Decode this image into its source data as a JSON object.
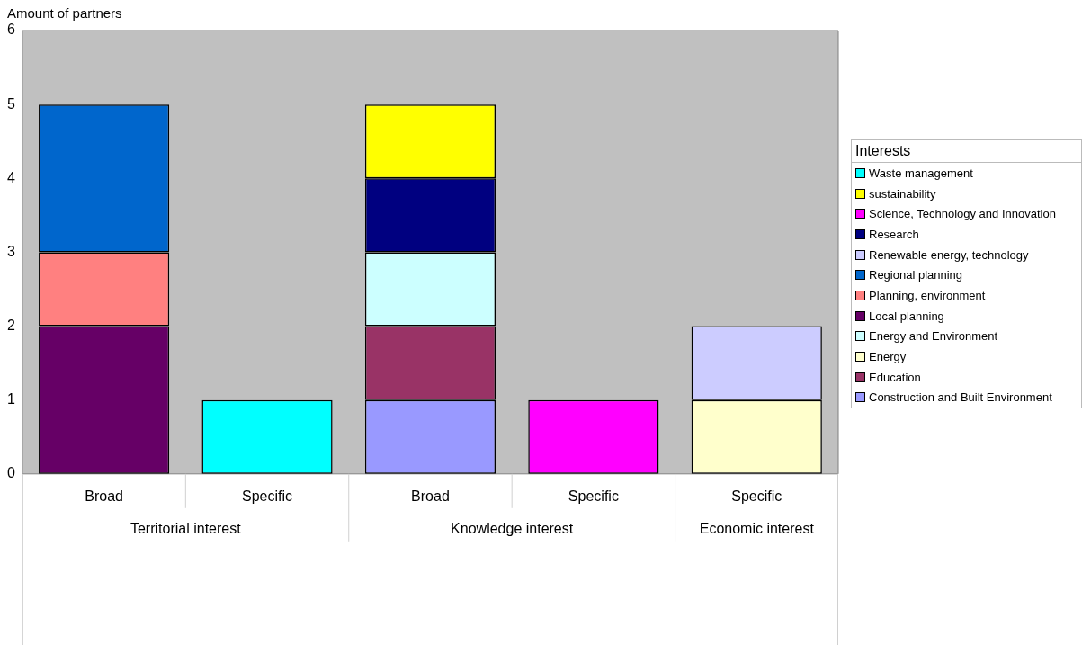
{
  "chart_data": {
    "type": "bar",
    "stacked": true,
    "ylabel": "Amount of partners",
    "legend_title": "Interests",
    "legend": "right",
    "categories": [
      "Broad",
      "Specific",
      "Broad",
      "Specific",
      "Specific"
    ],
    "annotations": [
      "Territorial interest",
      "Knowledge interest",
      "Economic interest"
    ],
    "ylim": [
      0,
      6
    ],
    "yticks": [
      0,
      1,
      2,
      3,
      4,
      5,
      6
    ],
    "grid": false,
    "series": [
      {
        "name": "Construction and Built Environment",
        "color": "#9999ff",
        "values": [
          null,
          null,
          1,
          null,
          null
        ]
      },
      {
        "name": "Education",
        "color": "#993366",
        "values": [
          null,
          null,
          1,
          null,
          null
        ]
      },
      {
        "name": "Energy",
        "color": "#ffffcc",
        "values": [
          null,
          null,
          null,
          null,
          1
        ]
      },
      {
        "name": "Energy and Environment",
        "color": "#ccffff",
        "values": [
          null,
          null,
          1,
          null,
          null
        ]
      },
      {
        "name": "Local planning",
        "color": "#660066",
        "values": [
          2,
          null,
          null,
          null,
          null
        ]
      },
      {
        "name": "Planning, environment",
        "color": "#ff8080",
        "values": [
          1,
          null,
          null,
          null,
          null
        ]
      },
      {
        "name": "Regional planning",
        "color": "#0066cc",
        "values": [
          2,
          null,
          null,
          null,
          null
        ]
      },
      {
        "name": "Renewable energy, technology",
        "color": "#ccccff",
        "values": [
          null,
          null,
          null,
          null,
          1
        ]
      },
      {
        "name": "Research",
        "color": "#000080",
        "values": [
          null,
          null,
          1,
          null,
          null
        ]
      },
      {
        "name": "Science, Technology and Innovation",
        "color": "#ff00ff",
        "values": [
          null,
          null,
          null,
          1,
          null
        ]
      },
      {
        "name": "sustainability",
        "color": "#ffff00",
        "values": [
          null,
          null,
          1,
          null,
          null
        ]
      },
      {
        "name": "Waste management",
        "color": "#00ffff",
        "values": [
          null,
          1,
          null,
          null,
          null
        ]
      }
    ]
  }
}
